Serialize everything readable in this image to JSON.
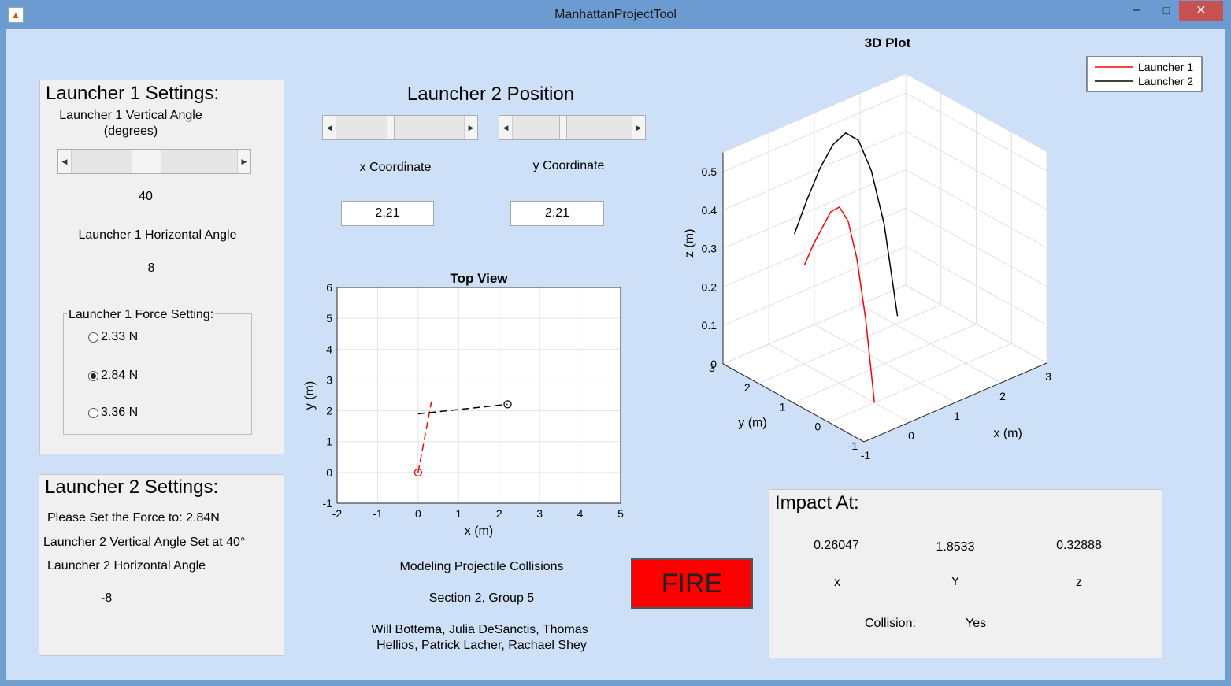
{
  "window": {
    "title": "ManhattanProjectTool",
    "minimize": "–",
    "maximize": "□",
    "close": "✕"
  },
  "launcher1": {
    "title": "Launcher 1 Settings:",
    "vertical_label_line1": "Launcher 1 Vertical Angle",
    "vertical_label_line2": "(degrees)",
    "vertical_value": "40",
    "vertical_slider_fraction": 0.44,
    "horizontal_label": "Launcher 1 Horizontal Angle",
    "horizontal_value": "8",
    "force_group_title": "Launcher 1 Force Setting:",
    "force_options": [
      "2.33 N",
      "2.84 N",
      "3.36 N"
    ],
    "force_selected_index": 1
  },
  "launcher2": {
    "title": "Launcher 2 Settings:",
    "force_text": "Please Set the Force to: 2.84N",
    "vertical_text": "Launcher 2 Vertical Angle Set at 40°",
    "horizontal_label": "Launcher 2 Horizontal Angle",
    "horizontal_value": "-8"
  },
  "position": {
    "title": "Launcher 2 Position",
    "x_label": "x Coordinate",
    "y_label": "y Coordinate",
    "x_value": "2.21",
    "y_value": "2.21",
    "x_slider_fraction": 0.42,
    "y_slider_fraction": 0.42
  },
  "credits": {
    "line1": "Modeling Projectile Collisions",
    "line2": "Section 2, Group 5",
    "line3": "Will Bottema, Julia DeSanctis, Thomas",
    "line4": "Hellios, Patrick Lacher, Rachael Shey"
  },
  "fire_label": "FIRE",
  "impact": {
    "title": "Impact At:",
    "x_value": "0.26047",
    "y_value": "1.8533",
    "z_value": "0.32888",
    "x_label": "x",
    "y_label": "Y",
    "z_label": "z",
    "collision_label": "Collision:",
    "collision_value": "Yes"
  },
  "colors": {
    "launcher1": "#ff0000",
    "launcher2": "#000000",
    "fire": "#ff0000",
    "background": "#cde0f7",
    "panel": "#f0f0f0"
  },
  "chart_data": [
    {
      "type": "line",
      "title": "Top View",
      "xlabel": "x (m)",
      "ylabel": "y (m)",
      "xlim": [
        -2,
        5
      ],
      "ylim": [
        -1,
        6
      ],
      "xticks": [
        -2,
        -1,
        0,
        1,
        2,
        3,
        4,
        5
      ],
      "yticks": [
        -1,
        0,
        1,
        2,
        3,
        4,
        5,
        6
      ],
      "grid": true,
      "series": [
        {
          "color": "#ff0000",
          "style": "dashed",
          "x": [
            0,
            0.33
          ],
          "y": [
            0,
            2.3
          ],
          "marker_start": "circle"
        },
        {
          "color": "#000000",
          "style": "dashed",
          "x": [
            0,
            2.21
          ],
          "y": [
            1.9,
            2.21
          ],
          "marker_end": "circle"
        }
      ]
    },
    {
      "type": "line",
      "title": "3D Plot",
      "xlabel": "x (m)",
      "ylabel": "y (m)",
      "zlabel": "z (m)",
      "xticks": [
        -1,
        0,
        1,
        2,
        3
      ],
      "yticks": [
        -1,
        0,
        1,
        2,
        3
      ],
      "zticks": [
        0,
        0.1,
        0.2,
        0.3,
        0.4,
        0.5
      ],
      "xlim": [
        -1,
        3
      ],
      "ylim": [
        -1,
        3
      ],
      "zlim": [
        0,
        0.55
      ],
      "grid": true,
      "legend": {
        "placement": "top-right",
        "entries": [
          "Launcher 1",
          "Launcher 2"
        ]
      },
      "series": [
        {
          "name": "Launcher 1",
          "color": "#ff0000",
          "x": [
            0.0,
            0.04,
            0.08,
            0.12,
            0.16,
            0.2,
            0.24,
            0.28,
            0.32
          ],
          "y": [
            0.0,
            0.3,
            0.6,
            0.9,
            1.2,
            1.5,
            1.8,
            2.1,
            2.4
          ],
          "z": [
            0.0,
            0.2,
            0.34,
            0.42,
            0.44,
            0.41,
            0.35,
            0.29,
            0.22
          ]
        },
        {
          "name": "Launcher 2",
          "color": "#000000",
          "x": [
            2.21,
            1.95,
            1.7,
            1.45,
            1.2,
            0.95,
            0.7,
            0.45,
            0.2
          ],
          "y": [
            2.21,
            2.25,
            2.29,
            2.33,
            2.37,
            2.41,
            2.45,
            2.49,
            2.53
          ],
          "z": [
            0.0,
            0.25,
            0.4,
            0.49,
            0.52,
            0.5,
            0.45,
            0.38,
            0.3
          ]
        }
      ]
    }
  ]
}
